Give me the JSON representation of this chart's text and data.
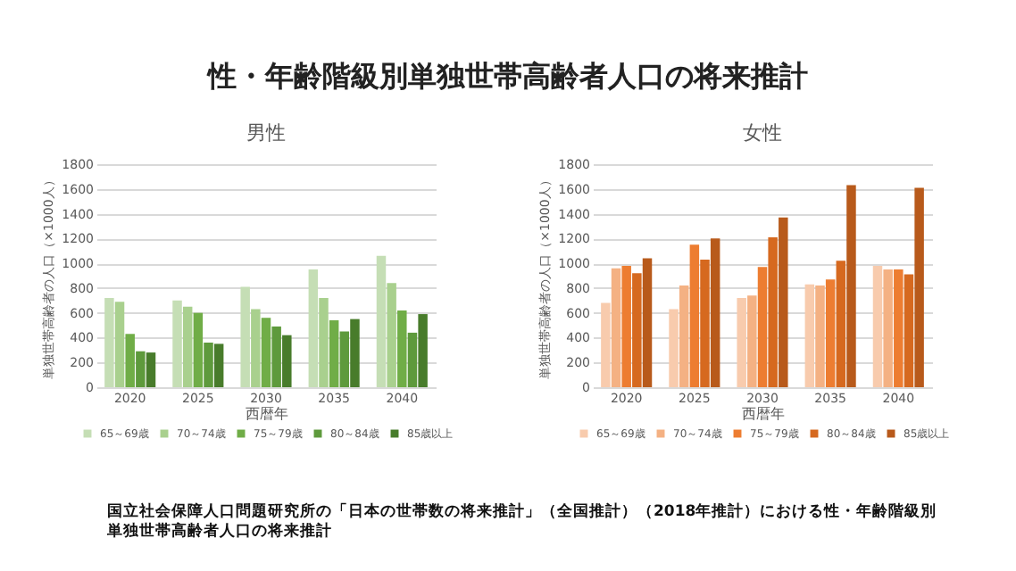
{
  "chart_data": [
    {
      "type": "bar",
      "title": "性・年齢階級別単独世帯高齢者人口の将来推計",
      "subtitle": "男性",
      "xlabel": "西暦年",
      "ylabel": "単独世帯高齢者の人口（×1000人）",
      "categories": [
        "2020",
        "2025",
        "2030",
        "2035",
        "2040"
      ],
      "series": [
        {
          "name": "65～69歳",
          "color": "#c5deb5",
          "values": [
            720,
            700,
            810,
            950,
            1060
          ]
        },
        {
          "name": "70～74歳",
          "color": "#a9d08e",
          "values": [
            690,
            650,
            630,
            720,
            840
          ]
        },
        {
          "name": "75～79歳",
          "color": "#70ad47",
          "values": [
            430,
            600,
            560,
            540,
            620
          ]
        },
        {
          "name": "80～84歳",
          "color": "#5e9a3c",
          "values": [
            290,
            360,
            490,
            450,
            440
          ]
        },
        {
          "name": "85歳以上",
          "color": "#487c2b",
          "values": [
            280,
            350,
            420,
            550,
            590
          ]
        }
      ],
      "ylim": [
        0,
        1800
      ],
      "yticks": [
        0,
        200,
        400,
        600,
        800,
        1000,
        1200,
        1400,
        1600,
        1800
      ],
      "grid": "y",
      "legend": "bottom"
    },
    {
      "type": "bar",
      "title": "女性",
      "xlabel": "西暦年",
      "ylabel": "単独世帯高齢者の人口（×1000人）",
      "categories": [
        "2020",
        "2025",
        "2030",
        "2035",
        "2040"
      ],
      "series": [
        {
          "name": "65～69歳",
          "color": "#f8cbad",
          "values": [
            680,
            630,
            720,
            830,
            980
          ]
        },
        {
          "name": "70～74歳",
          "color": "#f4b183",
          "values": [
            960,
            820,
            740,
            820,
            950
          ]
        },
        {
          "name": "75～79歳",
          "color": "#ed7d31",
          "values": [
            980,
            1150,
            970,
            870,
            950
          ]
        },
        {
          "name": "80～84歳",
          "color": "#d6691f",
          "values": [
            920,
            1030,
            1210,
            1020,
            910
          ]
        },
        {
          "name": "85歳以上",
          "color": "#b85a1b",
          "values": [
            1040,
            1200,
            1370,
            1630,
            1610
          ]
        }
      ],
      "ylim": [
        0,
        1800
      ],
      "yticks": [
        0,
        200,
        400,
        600,
        800,
        1000,
        1200,
        1400,
        1600,
        1800
      ],
      "grid": "y",
      "legend": "bottom",
      "annotations": [
        "国立社会保障人口問題研究所の「日本の世帯数の将来推計」（全国推計）（2018年推計）における性・年齢階級別単独世帯高齢者人口の将来推計"
      ]
    }
  ]
}
